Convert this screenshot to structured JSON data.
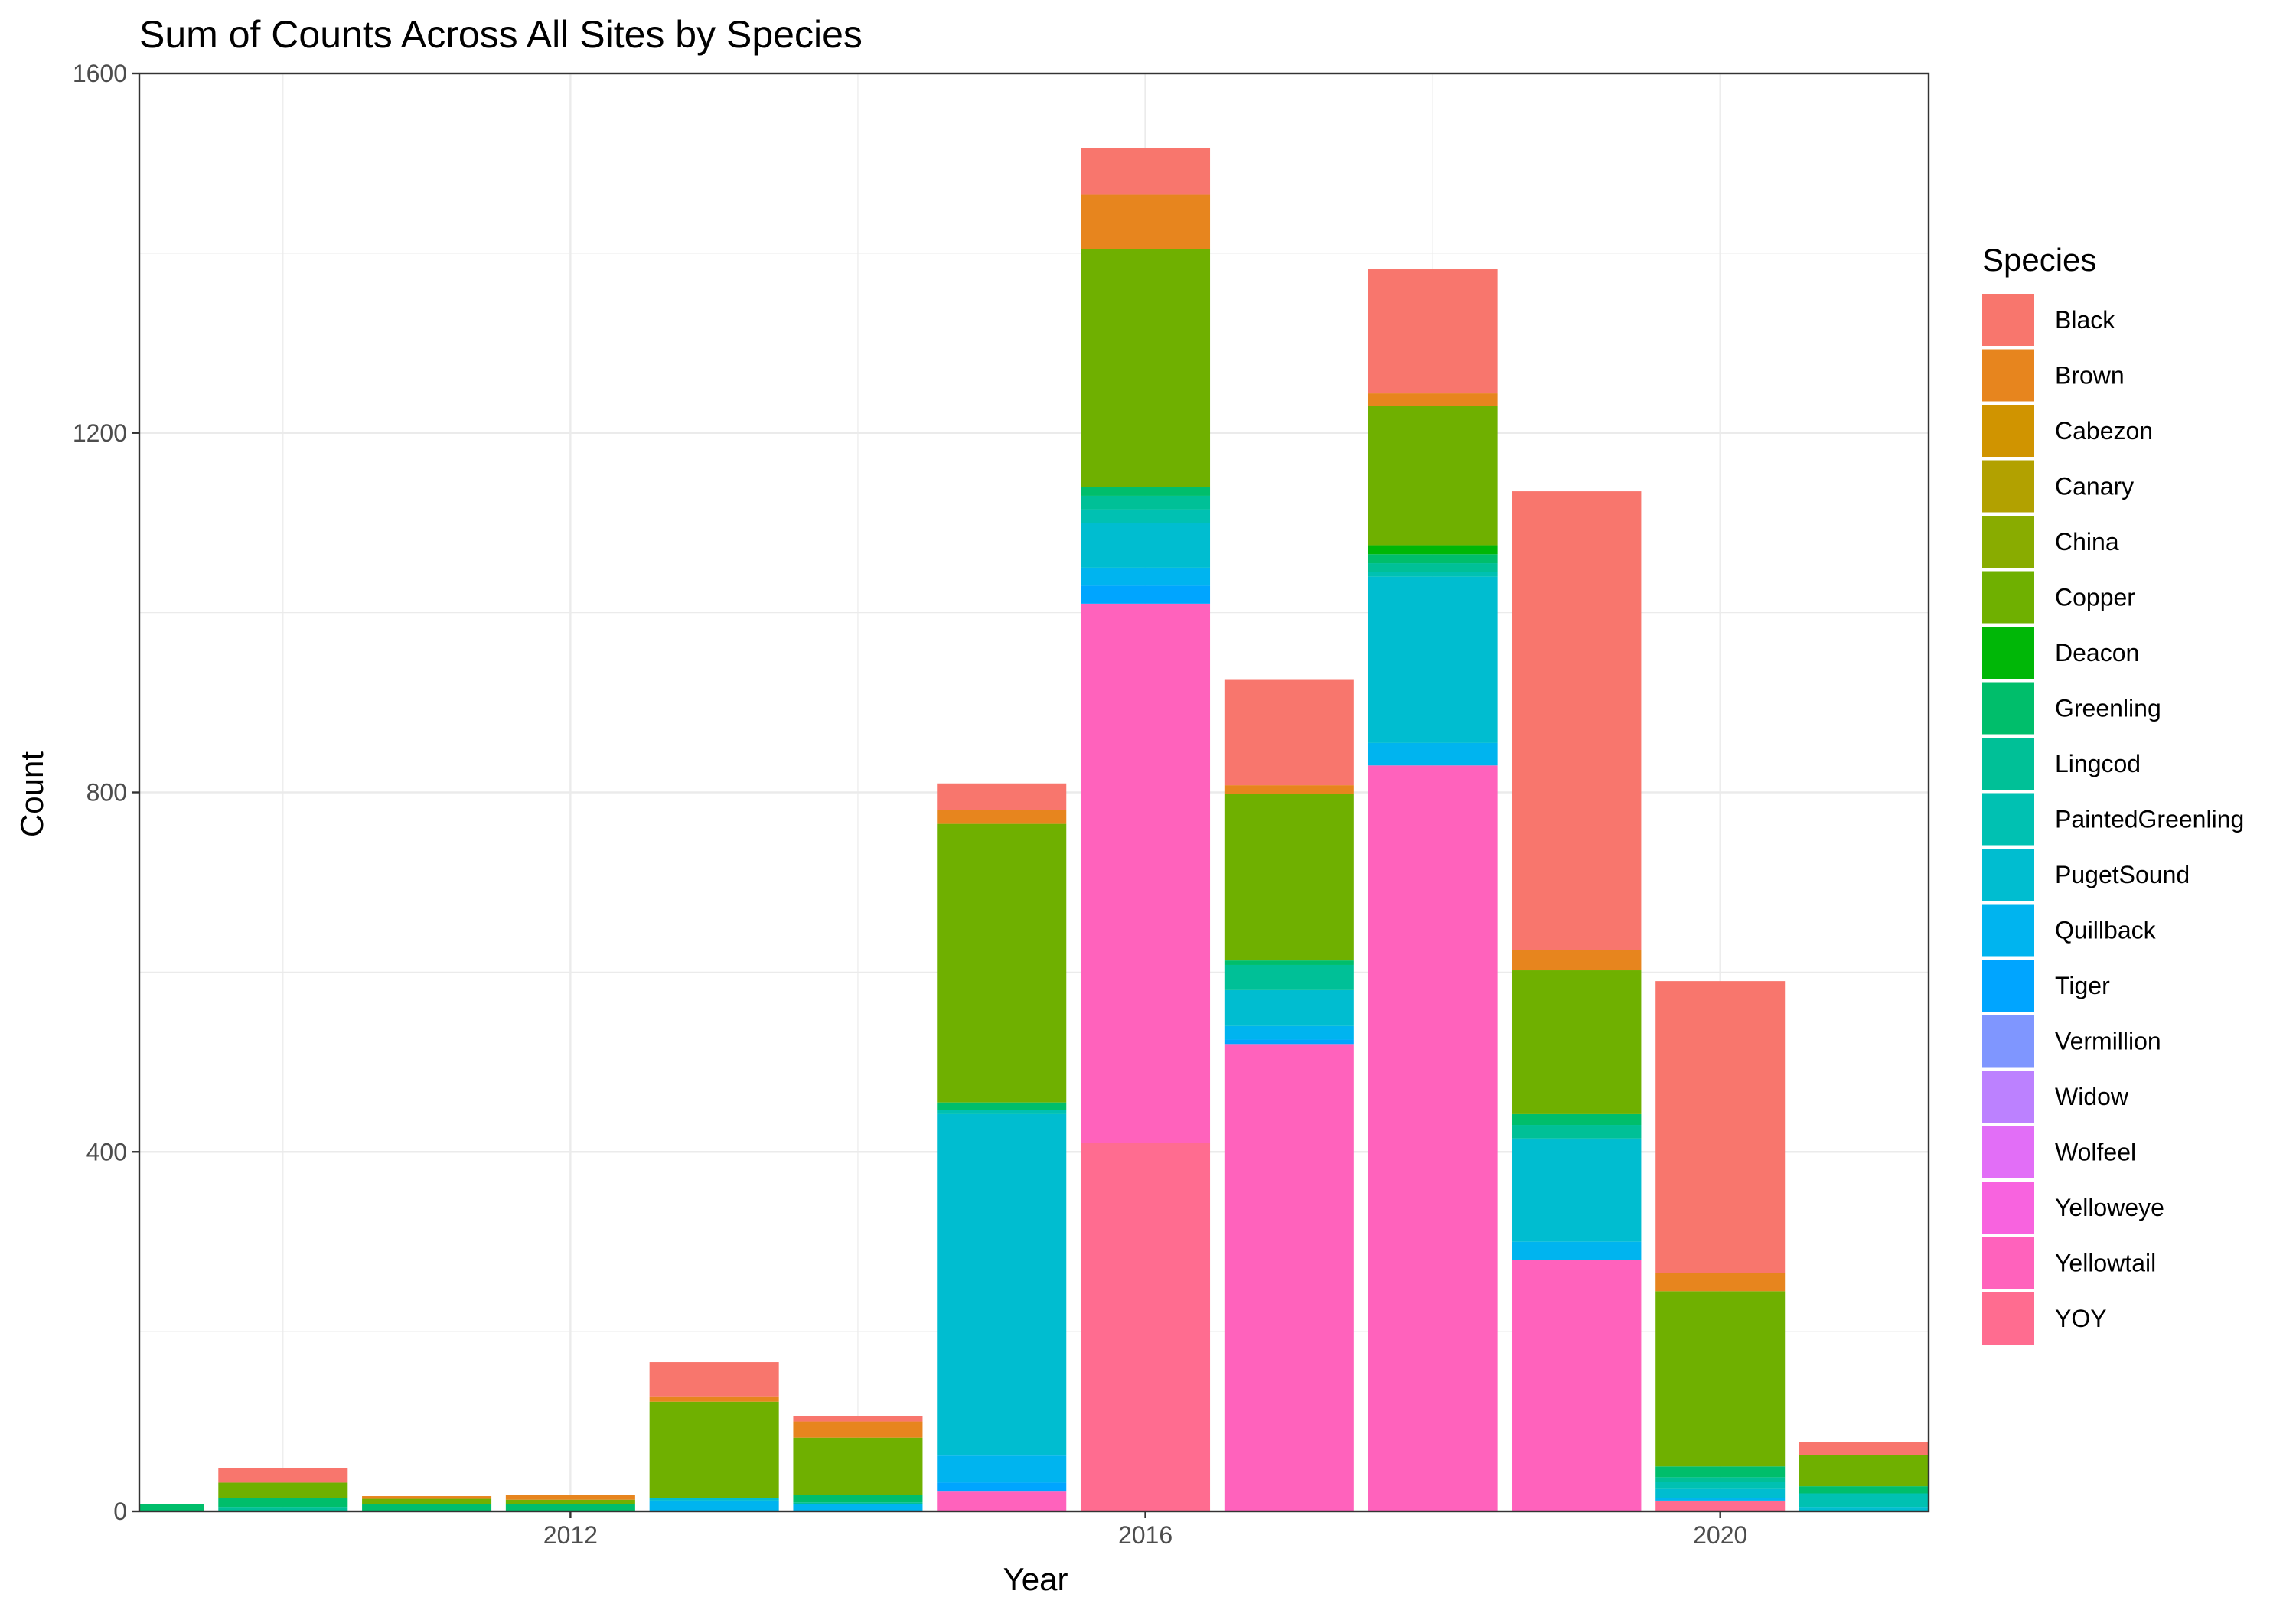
{
  "chart_data": {
    "type": "bar",
    "stacked": true,
    "title": "Sum of Counts Across All Sites by Species",
    "xlabel": "Year",
    "ylabel": "Count",
    "xlim": [
      2009.0,
      2021.45
    ],
    "ylim": [
      0,
      1600
    ],
    "x_ticks": [
      2012,
      2016,
      2020
    ],
    "y_ticks": [
      0,
      400,
      800,
      1200,
      1600
    ],
    "grid": true,
    "legend": {
      "title": "Species",
      "position": "right"
    },
    "categories": [
      2009,
      2010,
      2011,
      2012,
      2013,
      2014,
      2015,
      2016,
      2017,
      2018,
      2019,
      2020,
      2021
    ],
    "series": [
      {
        "name": "Black",
        "color": "#F8766D",
        "values": [
          0,
          16,
          0,
          0,
          38,
          6,
          30,
          52,
          118,
          138,
          510,
          325,
          14
        ]
      },
      {
        "name": "Brown",
        "color": "#E7851E",
        "values": [
          0,
          0,
          3,
          5,
          6,
          18,
          15,
          60,
          10,
          14,
          23,
          20,
          0
        ]
      },
      {
        "name": "Cabezon",
        "color": "#D09400",
        "values": [
          0,
          0,
          0,
          0,
          0,
          0,
          0,
          0,
          0,
          0,
          0,
          0,
          0
        ]
      },
      {
        "name": "Canary",
        "color": "#B2A100",
        "values": [
          0,
          0,
          0,
          0,
          0,
          0,
          0,
          0,
          0,
          0,
          0,
          0,
          0
        ]
      },
      {
        "name": "China",
        "color": "#89AC00",
        "values": [
          0,
          0,
          0,
          0,
          0,
          0,
          0,
          0,
          0,
          0,
          0,
          0,
          0
        ]
      },
      {
        "name": "Copper",
        "color": "#6FB000",
        "values": [
          0,
          17,
          6,
          5,
          107,
          64,
          310,
          265,
          185,
          155,
          160,
          195,
          35
        ]
      },
      {
        "name": "Deacon",
        "color": "#00B707",
        "values": [
          0,
          0,
          0,
          0,
          0,
          0,
          0,
          0,
          0,
          10,
          0,
          0,
          0
        ]
      },
      {
        "name": "Greenling",
        "color": "#00BE6B",
        "values": [
          8,
          10,
          8,
          8,
          0,
          8,
          8,
          10,
          5,
          10,
          12,
          12,
          8
        ]
      },
      {
        "name": "Lingcod",
        "color": "#00C097",
        "values": [
          0,
          5,
          0,
          0,
          0,
          2,
          0,
          15,
          28,
          10,
          15,
          5,
          0
        ]
      },
      {
        "name": "PaintedGreenling",
        "color": "#00C1B2",
        "values": [
          0,
          0,
          0,
          0,
          0,
          0,
          5,
          15,
          0,
          5,
          0,
          8,
          15
        ]
      },
      {
        "name": "PugetSound",
        "color": "#00BDD0",
        "values": [
          0,
          0,
          0,
          0,
          3,
          0,
          380,
          50,
          40,
          185,
          115,
          10,
          5
        ]
      },
      {
        "name": "Quillback",
        "color": "#00B4EF",
        "values": [
          0,
          0,
          0,
          0,
          12,
          8,
          30,
          20,
          15,
          25,
          20,
          3,
          0
        ]
      },
      {
        "name": "Tiger",
        "color": "#00A5FF",
        "values": [
          0,
          0,
          0,
          0,
          0,
          0,
          10,
          20,
          5,
          0,
          0,
          0,
          0
        ]
      },
      {
        "name": "Vermillion",
        "color": "#7F96FF",
        "values": [
          0,
          0,
          0,
          0,
          0,
          0,
          0,
          0,
          0,
          0,
          0,
          0,
          0
        ]
      },
      {
        "name": "Widow",
        "color": "#BC81FF",
        "values": [
          0,
          0,
          0,
          0,
          0,
          0,
          0,
          0,
          0,
          0,
          0,
          0,
          0
        ]
      },
      {
        "name": "Wolfeel",
        "color": "#E26EF7",
        "values": [
          0,
          0,
          0,
          0,
          0,
          0,
          0,
          0,
          0,
          0,
          0,
          0,
          0
        ]
      },
      {
        "name": "Yelloweye",
        "color": "#F863DF",
        "values": [
          0,
          0,
          0,
          0,
          0,
          0,
          0,
          0,
          0,
          0,
          0,
          0,
          0
        ]
      },
      {
        "name": "Yellowtail",
        "color": "#FF62BC",
        "values": [
          0,
          0,
          0,
          0,
          0,
          0,
          22,
          600,
          520,
          830,
          280,
          0,
          0
        ]
      },
      {
        "name": "YOY",
        "color": "#FF6C90",
        "values": [
          0,
          0,
          0,
          0,
          0,
          0,
          0,
          410,
          0,
          0,
          0,
          12,
          0
        ]
      }
    ]
  }
}
